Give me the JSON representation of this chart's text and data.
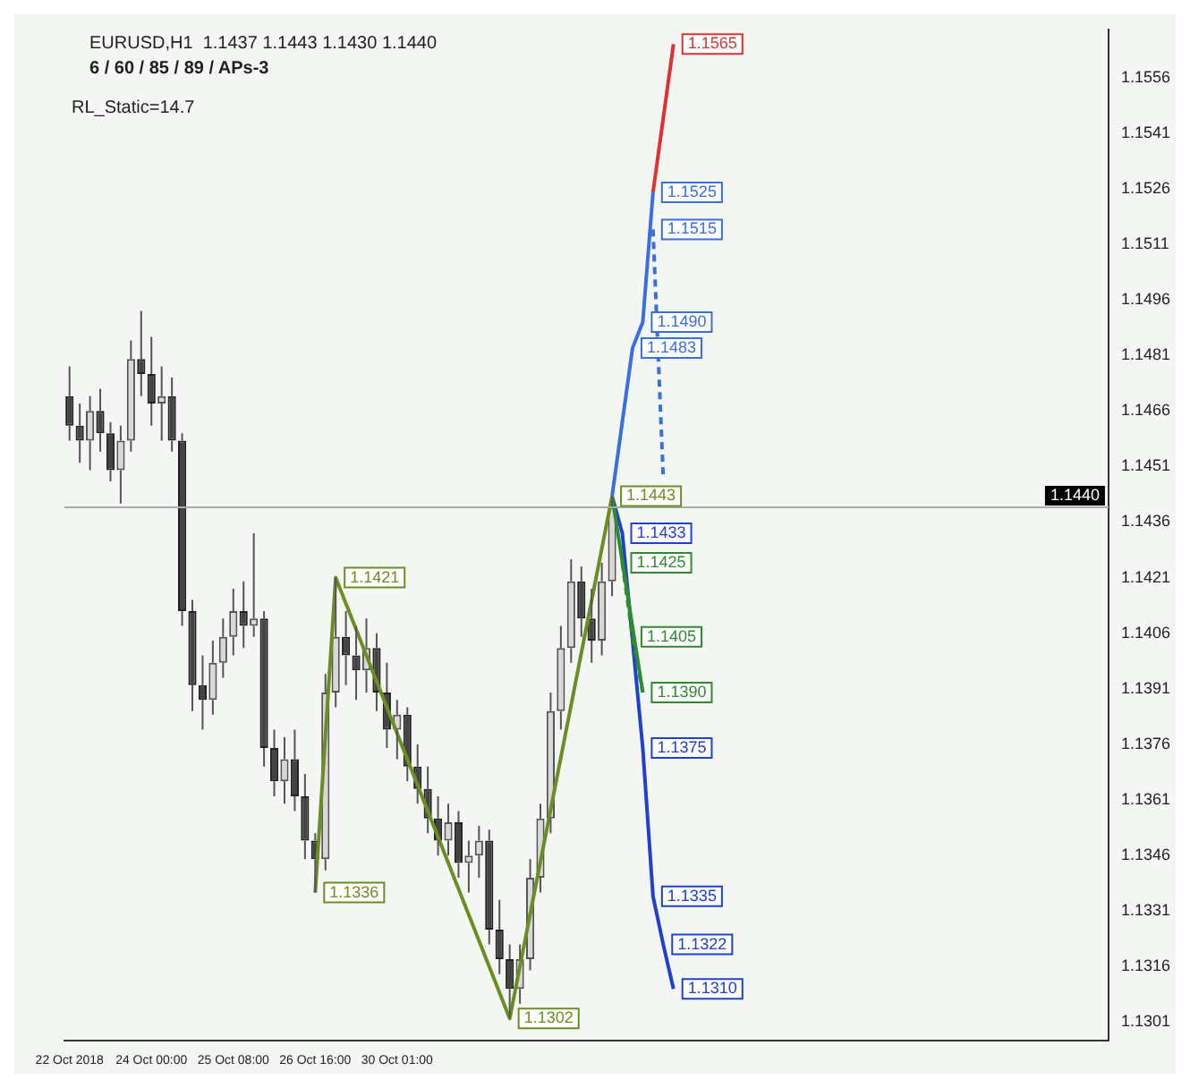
{
  "chart_data": {
    "type": "candlestick",
    "title": "EURUSD,H1  1.1437 1.1443 1.1430 1.1440",
    "subtitle": "6 / 60 / 85 / 89 / APs-3",
    "categories": [
      "22 Oct 2018",
      null,
      null,
      null,
      null,
      null,
      null,
      null,
      "24 Oct 00:00",
      null,
      null,
      null,
      null,
      null,
      null,
      null,
      "25 Oct 08:00",
      null,
      null,
      null,
      null,
      null,
      null,
      null,
      "26 Oct 16:00",
      null,
      null,
      null,
      null,
      null,
      null,
      null,
      "30 Oct 01:00",
      null,
      null,
      null,
      null,
      null,
      null,
      null,
      null,
      null,
      null,
      null,
      null,
      null,
      null,
      null,
      null,
      null,
      null,
      null,
      null,
      null,
      null,
      null,
      null,
      null,
      null,
      null,
      null,
      null,
      null,
      null,
      null,
      null,
      null,
      null,
      null,
      null,
      null,
      null,
      null,
      null,
      null,
      null,
      null,
      null,
      null,
      null,
      null,
      null,
      null,
      null,
      null,
      null,
      null,
      null,
      null,
      null,
      null,
      null,
      null,
      null,
      null,
      null,
      null,
      null,
      null,
      null,
      null,
      null
    ],
    "ohlc": [
      [
        1.147,
        1.1478,
        1.1458,
        1.1462
      ],
      [
        1.1462,
        1.1468,
        1.1452,
        1.1458
      ],
      [
        1.1458,
        1.147,
        1.145,
        1.1466
      ],
      [
        1.1466,
        1.1472,
        1.1455,
        1.146
      ],
      [
        1.146,
        1.1463,
        1.1447,
        1.145
      ],
      [
        1.145,
        1.1462,
        1.1441,
        1.1458
      ],
      [
        1.1458,
        1.1485,
        1.1455,
        1.148
      ],
      [
        1.148,
        1.1493,
        1.147,
        1.1476
      ],
      [
        1.1476,
        1.1486,
        1.1462,
        1.1468
      ],
      [
        1.1468,
        1.1478,
        1.1458,
        1.147
      ],
      [
        1.147,
        1.1475,
        1.1455,
        1.1458
      ],
      [
        1.1458,
        1.146,
        1.1408,
        1.1412
      ],
      [
        1.1412,
        1.1415,
        1.1385,
        1.1392
      ],
      [
        1.1392,
        1.14,
        1.138,
        1.1388
      ],
      [
        1.1388,
        1.1404,
        1.1384,
        1.1398
      ],
      [
        1.1398,
        1.141,
        1.1394,
        1.1405
      ],
      [
        1.1405,
        1.1418,
        1.14,
        1.1412
      ],
      [
        1.1412,
        1.142,
        1.1402,
        1.1408
      ],
      [
        1.1408,
        1.1433,
        1.1405,
        1.141
      ],
      [
        1.141,
        1.1412,
        1.137,
        1.1375
      ],
      [
        1.1375,
        1.138,
        1.1362,
        1.1366
      ],
      [
        1.1366,
        1.1378,
        1.136,
        1.1372
      ],
      [
        1.1372,
        1.138,
        1.1358,
        1.1362
      ],
      [
        1.1362,
        1.1368,
        1.1345,
        1.135
      ],
      [
        1.135,
        1.1352,
        1.1336,
        1.1345
      ],
      [
        1.1345,
        1.1395,
        1.1342,
        1.139
      ],
      [
        1.139,
        1.1421,
        1.1386,
        1.1405
      ],
      [
        1.1405,
        1.1412,
        1.1392,
        1.14
      ],
      [
        1.14,
        1.1408,
        1.1388,
        1.1396
      ],
      [
        1.1396,
        1.141,
        1.139,
        1.1402
      ],
      [
        1.1402,
        1.1406,
        1.1385,
        1.139
      ],
      [
        1.139,
        1.1398,
        1.1375,
        1.138
      ],
      [
        1.138,
        1.1388,
        1.1372,
        1.1384
      ],
      [
        1.1384,
        1.1386,
        1.1366,
        1.137
      ],
      [
        1.137,
        1.1376,
        1.136,
        1.1364
      ],
      [
        1.1364,
        1.137,
        1.1352,
        1.1356
      ],
      [
        1.1356,
        1.1362,
        1.1346,
        1.135
      ],
      [
        1.135,
        1.136,
        1.1346,
        1.1355
      ],
      [
        1.1355,
        1.1358,
        1.134,
        1.1344
      ],
      [
        1.1344,
        1.135,
        1.1336,
        1.1346
      ],
      [
        1.1346,
        1.1354,
        1.134,
        1.135
      ],
      [
        1.135,
        1.1353,
        1.1322,
        1.1326
      ],
      [
        1.1326,
        1.1334,
        1.1314,
        1.1318
      ],
      [
        1.1318,
        1.1322,
        1.1302,
        1.131
      ],
      [
        1.131,
        1.1322,
        1.1306,
        1.1318
      ],
      [
        1.1318,
        1.1345,
        1.1315,
        1.134
      ],
      [
        1.134,
        1.136,
        1.1336,
        1.1356
      ],
      [
        1.1356,
        1.139,
        1.1352,
        1.1385
      ],
      [
        1.1385,
        1.1408,
        1.138,
        1.1402
      ],
      [
        1.1402,
        1.1426,
        1.1398,
        1.142
      ],
      [
        1.142,
        1.1424,
        1.1405,
        1.141
      ],
      [
        1.141,
        1.1418,
        1.1398,
        1.1404
      ],
      [
        1.1404,
        1.1425,
        1.14,
        1.142
      ],
      [
        1.142,
        1.1443,
        1.1416,
        1.144
      ],
      null,
      null,
      null,
      null,
      null,
      null,
      null,
      null,
      null,
      null,
      null,
      null,
      null,
      null,
      null,
      null,
      null,
      null,
      null,
      null,
      null,
      null,
      null,
      null,
      null,
      null,
      null,
      null,
      null,
      null,
      null,
      null,
      null,
      null,
      null,
      null,
      null,
      null,
      null,
      null,
      null,
      null,
      null,
      null,
      null,
      null,
      null,
      null
    ],
    "series": [
      {
        "type": "line",
        "color": "#6b8e23",
        "values": [
          null,
          null,
          null,
          null,
          null,
          null,
          null,
          null,
          null,
          null,
          null,
          null,
          null,
          null,
          null,
          null,
          null,
          null,
          null,
          null,
          null,
          null,
          null,
          null,
          1.1336,
          null,
          1.1421,
          null,
          null,
          null,
          null,
          null,
          null,
          null,
          null,
          null,
          null,
          null,
          null,
          null,
          null,
          null,
          null,
          1.1302,
          null,
          null,
          null,
          null,
          null,
          null,
          null,
          null,
          null,
          1.1443,
          null,
          null,
          null,
          null,
          null,
          null,
          null,
          null,
          null,
          null,
          null,
          null,
          null,
          null,
          null,
          null,
          null,
          null,
          null,
          null,
          null,
          null,
          null,
          null,
          null,
          null,
          null,
          null,
          null,
          null,
          null,
          null,
          null,
          null,
          null,
          null,
          null,
          null,
          null,
          null,
          null,
          null,
          null,
          null,
          null,
          null,
          null,
          null
        ],
        "value_labels": [
          null,
          null,
          null,
          null,
          null,
          null,
          null,
          null,
          null,
          null,
          null,
          null,
          null,
          null,
          null,
          null,
          null,
          null,
          null,
          null,
          null,
          null,
          null,
          null,
          "1.1336",
          null,
          "1.1421",
          null,
          null,
          null,
          null,
          null,
          null,
          null,
          null,
          null,
          null,
          null,
          null,
          null,
          null,
          null,
          null,
          "1.1302",
          null,
          null,
          null,
          null,
          null,
          null,
          null,
          null,
          null,
          "1.1443",
          null,
          null,
          null,
          null,
          null,
          null,
          null,
          null,
          null,
          null,
          null,
          null,
          null,
          null,
          null,
          null,
          null,
          null,
          null,
          null,
          null,
          null,
          null,
          null,
          null,
          null,
          null,
          null,
          null,
          null,
          null,
          null,
          null,
          null,
          null,
          null,
          null,
          null,
          null,
          null,
          null,
          null,
          null,
          null,
          null,
          null,
          null,
          null
        ]
      },
      {
        "type": "line",
        "color": "#3a6fe0",
        "values": [
          null,
          null,
          null,
          null,
          null,
          null,
          null,
          null,
          null,
          null,
          null,
          null,
          null,
          null,
          null,
          null,
          null,
          null,
          null,
          null,
          null,
          null,
          null,
          null,
          null,
          null,
          null,
          null,
          null,
          null,
          null,
          null,
          null,
          null,
          null,
          null,
          null,
          null,
          null,
          null,
          null,
          null,
          null,
          null,
          null,
          null,
          null,
          null,
          null,
          null,
          null,
          null,
          null,
          1.1443,
          null,
          1.1483,
          1.149,
          1.1525,
          null,
          null,
          null,
          null,
          null,
          null,
          null,
          null,
          null,
          null,
          null,
          null,
          null,
          null,
          null,
          null,
          null,
          null,
          null,
          null,
          null,
          null,
          null,
          null,
          null,
          null,
          null,
          null,
          null,
          null,
          null,
          null,
          null,
          null,
          null,
          null,
          null,
          null,
          null,
          null,
          null,
          null,
          null,
          null
        ],
        "value_labels": [
          null,
          null,
          null,
          null,
          null,
          null,
          null,
          null,
          null,
          null,
          null,
          null,
          null,
          null,
          null,
          null,
          null,
          null,
          null,
          null,
          null,
          null,
          null,
          null,
          null,
          null,
          null,
          null,
          null,
          null,
          null,
          null,
          null,
          null,
          null,
          null,
          null,
          null,
          null,
          null,
          null,
          null,
          null,
          null,
          null,
          null,
          null,
          null,
          null,
          null,
          null,
          null,
          null,
          null,
          null,
          "1.1483",
          "1.1490",
          "1.1525",
          null,
          null,
          null,
          null,
          null,
          null,
          null,
          null,
          null,
          null,
          null,
          null,
          null,
          null,
          null,
          null,
          null,
          null,
          null,
          null,
          null,
          null,
          null,
          null,
          null,
          null,
          null,
          null,
          null,
          null,
          null,
          null,
          null,
          null,
          null,
          null,
          null,
          null,
          null,
          null,
          null,
          null,
          null,
          null
        ]
      },
      {
        "type": "line",
        "color": "#3a6fe0",
        "line_style": "dashed",
        "values": [
          null,
          null,
          null,
          null,
          null,
          null,
          null,
          null,
          null,
          null,
          null,
          null,
          null,
          null,
          null,
          null,
          null,
          null,
          null,
          null,
          null,
          null,
          null,
          null,
          null,
          null,
          null,
          null,
          null,
          null,
          null,
          null,
          null,
          null,
          null,
          null,
          null,
          null,
          null,
          null,
          null,
          null,
          null,
          null,
          null,
          null,
          null,
          null,
          null,
          null,
          null,
          null,
          null,
          null,
          null,
          null,
          null,
          1.1515,
          1.1448,
          null,
          null,
          null,
          null,
          null,
          null,
          null,
          null,
          null,
          null,
          null,
          null,
          null,
          null,
          null,
          null,
          null,
          null,
          null,
          null,
          null,
          null,
          null,
          null,
          null,
          null,
          null,
          null,
          null,
          null,
          null,
          null,
          null,
          null,
          null,
          null,
          null,
          null,
          null,
          null,
          null,
          null,
          null
        ],
        "value_labels": [
          null,
          null,
          null,
          null,
          null,
          null,
          null,
          null,
          null,
          null,
          null,
          null,
          null,
          null,
          null,
          null,
          null,
          null,
          null,
          null,
          null,
          null,
          null,
          null,
          null,
          null,
          null,
          null,
          null,
          null,
          null,
          null,
          null,
          null,
          null,
          null,
          null,
          null,
          null,
          null,
          null,
          null,
          null,
          null,
          null,
          null,
          null,
          null,
          null,
          null,
          null,
          null,
          null,
          null,
          null,
          null,
          null,
          "1.1515",
          null,
          null,
          null,
          null,
          null,
          null,
          null,
          null,
          null,
          null,
          null,
          null,
          null,
          null,
          null,
          null,
          null,
          null,
          null,
          null,
          null,
          null,
          null,
          null,
          null,
          null,
          null,
          null,
          null,
          null,
          null,
          null,
          null,
          null,
          null,
          null,
          null,
          null,
          null,
          null,
          null,
          null,
          null,
          null
        ]
      },
      {
        "type": "line",
        "color": "#e03030",
        "values": [
          null,
          null,
          null,
          null,
          null,
          null,
          null,
          null,
          null,
          null,
          null,
          null,
          null,
          null,
          null,
          null,
          null,
          null,
          null,
          null,
          null,
          null,
          null,
          null,
          null,
          null,
          null,
          null,
          null,
          null,
          null,
          null,
          null,
          null,
          null,
          null,
          null,
          null,
          null,
          null,
          null,
          null,
          null,
          null,
          null,
          null,
          null,
          null,
          null,
          null,
          null,
          null,
          null,
          null,
          null,
          null,
          null,
          1.1525,
          null,
          1.1565,
          null,
          null,
          null,
          null,
          null,
          null,
          null,
          null,
          null,
          null,
          null,
          null,
          null,
          null,
          null,
          null,
          null,
          null,
          null,
          null,
          null,
          null,
          null,
          null,
          null,
          null,
          null,
          null,
          null,
          null,
          null,
          null,
          null,
          null,
          null,
          null,
          null,
          null,
          null,
          null,
          null,
          null
        ],
        "value_labels": [
          null,
          null,
          null,
          null,
          null,
          null,
          null,
          null,
          null,
          null,
          null,
          null,
          null,
          null,
          null,
          null,
          null,
          null,
          null,
          null,
          null,
          null,
          null,
          null,
          null,
          null,
          null,
          null,
          null,
          null,
          null,
          null,
          null,
          null,
          null,
          null,
          null,
          null,
          null,
          null,
          null,
          null,
          null,
          null,
          null,
          null,
          null,
          null,
          null,
          null,
          null,
          null,
          null,
          null,
          null,
          null,
          null,
          null,
          null,
          "1.1565",
          null,
          null,
          null,
          null,
          null,
          null,
          null,
          null,
          null,
          null,
          null,
          null,
          null,
          null,
          null,
          null,
          null,
          null,
          null,
          null,
          null,
          null,
          null,
          null,
          null,
          null,
          null,
          null,
          null,
          null,
          null,
          null,
          null,
          null,
          null,
          null,
          null,
          null,
          null,
          null,
          null,
          null
        ]
      },
      {
        "type": "line",
        "color": "#2e8b2e",
        "values": [
          null,
          null,
          null,
          null,
          null,
          null,
          null,
          null,
          null,
          null,
          null,
          null,
          null,
          null,
          null,
          null,
          null,
          null,
          null,
          null,
          null,
          null,
          null,
          null,
          null,
          null,
          null,
          null,
          null,
          null,
          null,
          null,
          null,
          null,
          null,
          null,
          null,
          null,
          null,
          null,
          null,
          null,
          null,
          null,
          null,
          null,
          null,
          null,
          null,
          null,
          null,
          null,
          null,
          1.1443,
          null,
          null,
          1.139,
          null,
          null,
          null,
          null,
          null,
          null,
          null,
          null,
          null,
          null,
          null,
          null,
          null,
          null,
          null,
          null,
          null,
          null,
          null,
          null,
          null,
          null,
          null,
          null,
          null,
          null,
          null,
          null,
          null,
          null,
          null,
          null,
          null,
          null,
          null,
          null,
          null,
          null,
          null,
          null,
          null,
          null,
          null,
          null,
          null
        ],
        "value_labels": [
          null,
          null,
          null,
          null,
          null,
          null,
          null,
          null,
          null,
          null,
          null,
          null,
          null,
          null,
          null,
          null,
          null,
          null,
          null,
          null,
          null,
          null,
          null,
          null,
          null,
          null,
          null,
          null,
          null,
          null,
          null,
          null,
          null,
          null,
          null,
          null,
          null,
          null,
          null,
          null,
          null,
          null,
          null,
          null,
          null,
          null,
          null,
          null,
          null,
          null,
          null,
          null,
          null,
          null,
          null,
          null,
          "1.1390",
          null,
          null,
          null,
          null,
          null,
          null,
          null,
          null,
          null,
          null,
          null,
          null,
          null,
          null,
          null,
          null,
          null,
          null,
          null,
          null,
          null,
          null,
          null,
          null,
          null,
          null,
          null,
          null,
          null,
          null,
          null,
          null,
          null,
          null,
          null,
          null,
          null,
          null,
          null,
          null,
          null,
          null,
          null,
          null,
          null
        ]
      },
      {
        "type": "line",
        "color": "#2e8b2e",
        "line_style": "dashed",
        "values": [
          null,
          null,
          null,
          null,
          null,
          null,
          null,
          null,
          null,
          null,
          null,
          null,
          null,
          null,
          null,
          null,
          null,
          null,
          null,
          null,
          null,
          null,
          null,
          null,
          null,
          null,
          null,
          null,
          null,
          null,
          null,
          null,
          null,
          null,
          null,
          null,
          null,
          null,
          null,
          null,
          null,
          null,
          null,
          null,
          null,
          null,
          null,
          null,
          null,
          null,
          null,
          null,
          null,
          null,
          1.1425,
          1.1405,
          1.139,
          null,
          null,
          null,
          null,
          null,
          null,
          null,
          null,
          null,
          null,
          null,
          null,
          null,
          null,
          null,
          null,
          null,
          null,
          null,
          null,
          null,
          null,
          null,
          null,
          null,
          null,
          null,
          null,
          null,
          null,
          null,
          null,
          null,
          null,
          null,
          null,
          null,
          null,
          null,
          null,
          null,
          null,
          null,
          null,
          null
        ],
        "value_labels": [
          null,
          null,
          null,
          null,
          null,
          null,
          null,
          null,
          null,
          null,
          null,
          null,
          null,
          null,
          null,
          null,
          null,
          null,
          null,
          null,
          null,
          null,
          null,
          null,
          null,
          null,
          null,
          null,
          null,
          null,
          null,
          null,
          null,
          null,
          null,
          null,
          null,
          null,
          null,
          null,
          null,
          null,
          null,
          null,
          null,
          null,
          null,
          null,
          null,
          null,
          null,
          null,
          null,
          null,
          "1.1425",
          "1.1405",
          null,
          null,
          null,
          null,
          null,
          null,
          null,
          null,
          null,
          null,
          null,
          null,
          null,
          null,
          null,
          null,
          null,
          null,
          null,
          null,
          null,
          null,
          null,
          null,
          null,
          null,
          null,
          null,
          null,
          null,
          null,
          null,
          null,
          null,
          null,
          null,
          null,
          null,
          null,
          null,
          null,
          null,
          null,
          null,
          null,
          null
        ]
      },
      {
        "type": "line",
        "color": "#2040d0",
        "values": [
          null,
          null,
          null,
          null,
          null,
          null,
          null,
          null,
          null,
          null,
          null,
          null,
          null,
          null,
          null,
          null,
          null,
          null,
          null,
          null,
          null,
          null,
          null,
          null,
          null,
          null,
          null,
          null,
          null,
          null,
          null,
          null,
          null,
          null,
          null,
          null,
          null,
          null,
          null,
          null,
          null,
          null,
          null,
          null,
          null,
          null,
          null,
          null,
          null,
          null,
          null,
          null,
          null,
          1.1443,
          1.1433,
          null,
          1.1375,
          1.1335,
          1.1322,
          1.131,
          null,
          null,
          null,
          null,
          null,
          null,
          null,
          null,
          null,
          null,
          null,
          null,
          null,
          null,
          null,
          null,
          null,
          null,
          null,
          null,
          null,
          null,
          null,
          null,
          null,
          null,
          null,
          null,
          null,
          null,
          null,
          null,
          null,
          null,
          null,
          null,
          null,
          null,
          null,
          null,
          null,
          null
        ],
        "value_labels": [
          null,
          null,
          null,
          null,
          null,
          null,
          null,
          null,
          null,
          null,
          null,
          null,
          null,
          null,
          null,
          null,
          null,
          null,
          null,
          null,
          null,
          null,
          null,
          null,
          null,
          null,
          null,
          null,
          null,
          null,
          null,
          null,
          null,
          null,
          null,
          null,
          null,
          null,
          null,
          null,
          null,
          null,
          null,
          null,
          null,
          null,
          null,
          null,
          null,
          null,
          null,
          null,
          null,
          null,
          "1.1433",
          null,
          "1.1375",
          "1.1335",
          "1.1322",
          "1.1310",
          null,
          null,
          null,
          null,
          null,
          null,
          null,
          null,
          null,
          null,
          null,
          null,
          null,
          null,
          null,
          null,
          null,
          null,
          null,
          null,
          null,
          null,
          null,
          null,
          null,
          null,
          null,
          null,
          null,
          null,
          null,
          null,
          null,
          null,
          null,
          null,
          null,
          null,
          null,
          null,
          null,
          null
        ]
      }
    ],
    "ylim": [
      1.1296,
      1.1569
    ],
    "yticks": [
      1.1301,
      1.1316,
      1.1331,
      1.1346,
      1.1361,
      1.1376,
      1.1391,
      1.1406,
      1.1421,
      1.1436,
      1.1451,
      1.1466,
      1.1481,
      1.1496,
      1.1511,
      1.1526,
      1.1541,
      1.1556
    ],
    "grid": false,
    "legend": false,
    "ref_lines": [
      {
        "axis": "y",
        "value": 1.144,
        "label": "1.1440",
        "color": "#aaaaaa"
      }
    ],
    "annotations": [
      "RL_Static=14.7"
    ]
  }
}
